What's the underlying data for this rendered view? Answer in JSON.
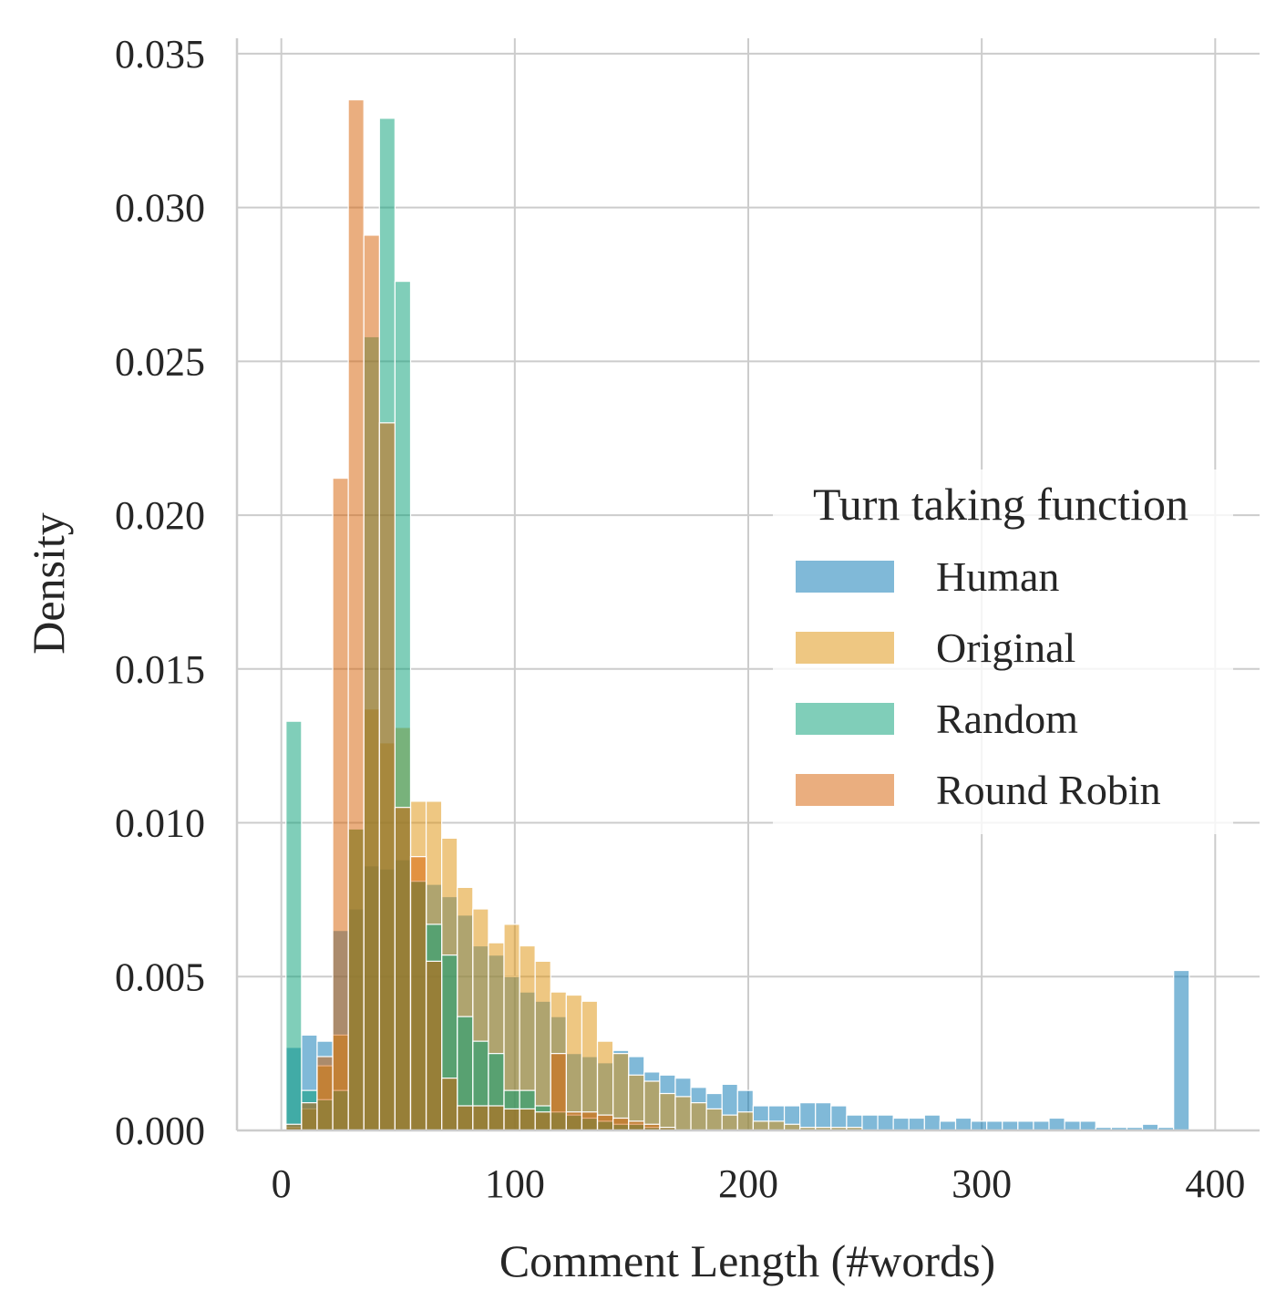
{
  "chart_data": {
    "type": "histogram",
    "xlabel": "Comment Length (#words)",
    "ylabel": "Density",
    "xlim": [
      -19,
      419
    ],
    "ylim": [
      0,
      0.0355
    ],
    "x_ticks": [
      0,
      100,
      200,
      300,
      400
    ],
    "x_tick_labels": [
      "0",
      "100",
      "200",
      "300",
      "400"
    ],
    "y_ticks": [
      0,
      0.005,
      0.01,
      0.015,
      0.02,
      0.025,
      0.03,
      0.035
    ],
    "y_tick_labels": [
      "0.000",
      "0.005",
      "0.010",
      "0.015",
      "0.020",
      "0.025",
      "0.030",
      "0.035"
    ],
    "grid": true,
    "legend": {
      "title": "Turn taking function",
      "placement": "center-right"
    },
    "bin_start": 2,
    "bin_width": 6.67,
    "series": [
      {
        "name": "Human",
        "color": "#0173b2",
        "values": [
          0.0027,
          0.0031,
          0.0029,
          0.0065,
          0.0072,
          0.0086,
          0.0085,
          0.0088,
          0.0081,
          0.008,
          0.0076,
          0.007,
          0.006,
          0.0057,
          0.005,
          0.0045,
          0.0042,
          0.0037,
          0.0025,
          0.0024,
          0.0022,
          0.0026,
          0.0024,
          0.0019,
          0.0018,
          0.0017,
          0.0014,
          0.0012,
          0.0015,
          0.0013,
          0.0008,
          0.0008,
          0.0008,
          0.0009,
          0.0009,
          0.0008,
          0.0005,
          0.0005,
          0.0005,
          0.0004,
          0.0004,
          0.0005,
          0.0003,
          0.0004,
          0.0003,
          0.0003,
          0.0003,
          0.0003,
          0.0003,
          0.0004,
          0.0003,
          0.0003,
          0.0001,
          0.0001,
          0.0001,
          0.0002,
          0.0001,
          0.0052
        ]
      },
      {
        "name": "Original",
        "color": "#de8f05",
        "values": [
          0.0001,
          0.0007,
          0.0021,
          0.0031,
          0.0098,
          0.0137,
          0.0126,
          0.0131,
          0.0107,
          0.0107,
          0.0095,
          0.0079,
          0.0072,
          0.0061,
          0.0067,
          0.006,
          0.0055,
          0.0045,
          0.0044,
          0.0042,
          0.0029,
          0.0025,
          0.0018,
          0.0016,
          0.0012,
          0.0011,
          0.0009,
          0.0007,
          0.0005,
          0.0006,
          0.0003,
          0.0003,
          0.0002,
          0.0001,
          0.0001,
          0.0001,
          0.0001
        ]
      },
      {
        "name": "Random",
        "color": "#029e73",
        "values": [
          0.0133,
          0.0013,
          0.001,
          0.0013,
          0.0098,
          0.0258,
          0.0329,
          0.0276,
          0.0081,
          0.0067,
          0.0057,
          0.0037,
          0.0029,
          0.0025,
          0.0013,
          0.0013,
          0.0008,
          0.0006,
          0.0005,
          0.0004,
          0.0003,
          0.0002,
          0.0002,
          0.0001,
          0.0001
        ]
      },
      {
        "name": "Round Robin",
        "color": "#d55e00",
        "values": [
          0.0002,
          0.0009,
          0.0024,
          0.0212,
          0.0335,
          0.0291,
          0.023,
          0.0105,
          0.0089,
          0.0055,
          0.0017,
          0.0008,
          0.0008,
          0.0008,
          0.0007,
          0.0007,
          0.0006,
          0.0025,
          0.0006,
          0.0006,
          0.0005,
          0.0004,
          0.0003,
          0.0002,
          0.0001
        ]
      }
    ]
  }
}
